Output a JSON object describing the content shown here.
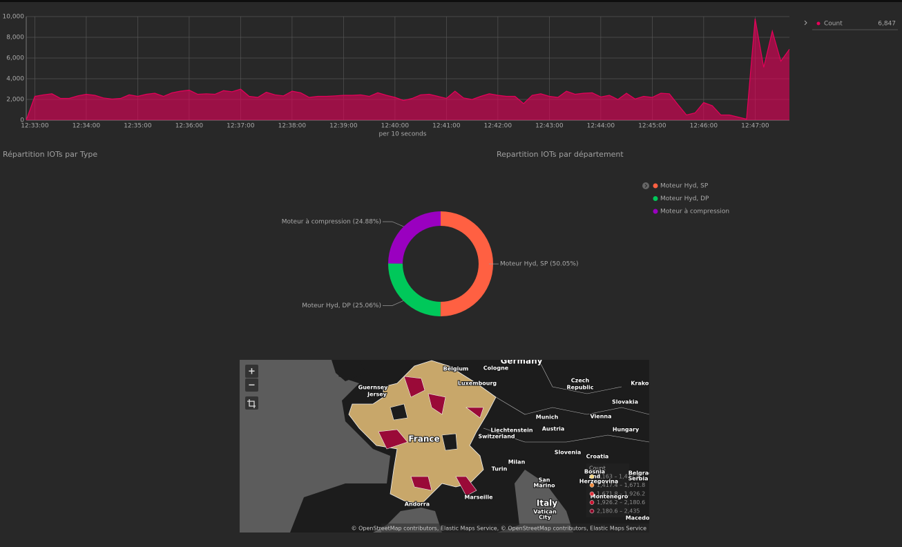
{
  "chart_data": [
    {
      "type": "area",
      "x": [
        "12:32:50",
        "12:33:00",
        "12:33:10",
        "12:33:20",
        "12:33:30",
        "12:33:40",
        "12:33:50",
        "12:34:00",
        "12:34:10",
        "12:34:20",
        "12:34:30",
        "12:34:40",
        "12:34:50",
        "12:35:00",
        "12:35:10",
        "12:35:20",
        "12:35:30",
        "12:35:40",
        "12:35:50",
        "12:36:00",
        "12:36:10",
        "12:36:20",
        "12:36:30",
        "12:36:40",
        "12:36:50",
        "12:37:00",
        "12:37:10",
        "12:37:20",
        "12:37:30",
        "12:37:40",
        "12:37:50",
        "12:38:00",
        "12:38:10",
        "12:38:20",
        "12:38:30",
        "12:38:40",
        "12:38:50",
        "12:39:00",
        "12:39:10",
        "12:39:20",
        "12:39:30",
        "12:39:40",
        "12:39:50",
        "12:40:00",
        "12:40:10",
        "12:40:20",
        "12:40:30",
        "12:40:40",
        "12:40:50",
        "12:41:00",
        "12:41:10",
        "12:41:20",
        "12:41:30",
        "12:41:40",
        "12:41:50",
        "12:42:00",
        "12:42:10",
        "12:42:20",
        "12:42:30",
        "12:42:40",
        "12:42:50",
        "12:43:00",
        "12:43:10",
        "12:43:20",
        "12:43:30",
        "12:43:40",
        "12:43:50",
        "12:44:00",
        "12:44:10",
        "12:44:20",
        "12:44:30",
        "12:44:40",
        "12:44:50",
        "12:45:00",
        "12:45:10",
        "12:45:20",
        "12:45:30",
        "12:45:40",
        "12:45:50",
        "12:46:00",
        "12:46:10",
        "12:46:20",
        "12:46:30",
        "12:46:40",
        "12:46:50",
        "12:47:00",
        "12:47:10",
        "12:47:20",
        "12:47:30",
        "12:47:40"
      ],
      "series": [
        {
          "name": "Count",
          "color": "#e8005a",
          "values": [
            0,
            2300,
            2450,
            2550,
            2100,
            2100,
            2350,
            2500,
            2400,
            2150,
            2050,
            2100,
            2450,
            2300,
            2500,
            2600,
            2300,
            2650,
            2800,
            2900,
            2500,
            2550,
            2500,
            2850,
            2750,
            3000,
            2300,
            2200,
            2700,
            2450,
            2350,
            2800,
            2650,
            2200,
            2300,
            2300,
            2350,
            2400,
            2400,
            2450,
            2300,
            2650,
            2400,
            2200,
            1900,
            2100,
            2450,
            2500,
            2300,
            2100,
            2800,
            2150,
            2000,
            2300,
            2550,
            2400,
            2300,
            2300,
            1600,
            2400,
            2550,
            2300,
            2200,
            2800,
            2500,
            2600,
            2650,
            2250,
            2400,
            2000,
            2600,
            2050,
            2300,
            2200,
            2600,
            2550,
            1500,
            500,
            700,
            1700,
            1400,
            500,
            500,
            300,
            100,
            9800,
            5100,
            8600,
            5700,
            6847
          ]
        }
      ],
      "legend_value": "6,847",
      "x_label": "per 10 seconds",
      "xlim": [
        "12:32:50",
        "12:47:40"
      ],
      "xticks": [
        "12:33:00",
        "12:34:00",
        "12:35:00",
        "12:36:00",
        "12:37:00",
        "12:38:00",
        "12:39:00",
        "12:40:00",
        "12:41:00",
        "12:42:00",
        "12:43:00",
        "12:44:00",
        "12:45:00",
        "12:46:00",
        "12:47:00"
      ],
      "ylim": [
        0,
        10000
      ],
      "yticks": [
        0,
        {
          "value": 2000,
          "label": "2,000"
        },
        {
          "value": 4000,
          "label": "4,000"
        },
        {
          "value": 6000,
          "label": "6,000"
        },
        {
          "value": 8000,
          "label": "8,000"
        },
        {
          "value": 10000,
          "label": "10,000"
        }
      ],
      "grid": true
    },
    {
      "type": "pie",
      "title": "Répartition IOTs par Type",
      "categories": [
        "Moteur Hyd, SP",
        "Moteur Hyd, DP",
        "Moteur à compression"
      ],
      "values": [
        50.05,
        25.06,
        24.88
      ],
      "value_labels": [
        "Moteur Hyd, SP (50.05%)",
        "Moteur Hyd, DP (25.06%)",
        "Moteur à compression (24.88%)"
      ],
      "colors": [
        "#ff6042",
        "#00c85a",
        "#9a00c0"
      ],
      "donut": true
    }
  ],
  "map": {
    "title": "Repartition IOTs par département",
    "controls": [
      "+",
      "−"
    ],
    "labels": [
      "Germany",
      "Belgium",
      "Cologne",
      "Luxembourg",
      "Guernsey",
      "Jersey",
      "Czech",
      "Republic",
      "Krakow",
      "Slovakia",
      "Munich",
      "Vienna",
      "Liechtenstein",
      "Austria",
      "Switzerland",
      "Hungary",
      "France",
      "Slovenia",
      "Croatia",
      "Milan",
      "Turin",
      "San",
      "Marino",
      "Bosnia",
      "and",
      "Herzegovina",
      "Belgrade",
      "Serbia",
      "Montenegro",
      "Marseille",
      "Andorra",
      "Italy",
      "Vatican",
      "City",
      "Macedonia"
    ],
    "legend": {
      "title": "Count",
      "ranges": [
        "1,163 – 1,417.4",
        "1,417.4 – 1,671.8",
        "1,671.8 – 1,926.2",
        "1,926.2 – 2,180.6",
        "2,180.6 – 2,435"
      ],
      "colors": [
        "#f2d27a",
        "#f08a3c",
        "#e0303a",
        "#c8102e",
        "#8c0a2a"
      ]
    },
    "attribution": "© OpenStreetMap contributors, Elastic Maps Service, © OpenStreetMap contributors, Elastic Maps Service"
  }
}
